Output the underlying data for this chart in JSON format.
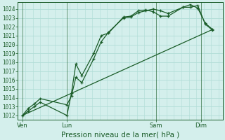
{
  "background_color": "#d4efec",
  "grid_color": "#b0ddd6",
  "line_color": "#1a5c28",
  "ylabel_ticks": [
    1012,
    1013,
    1014,
    1015,
    1016,
    1017,
    1018,
    1019,
    1020,
    1021,
    1022,
    1023,
    1024
  ],
  "ylim": [
    1011.5,
    1024.8
  ],
  "xlabel": "Pression niveau de la mer( hPa )",
  "xtick_labels": [
    "Ven",
    "Lun",
    "Sam",
    "Dim"
  ],
  "xtick_positions": [
    0,
    3,
    9,
    12
  ],
  "xlim": [
    -0.3,
    13.5
  ],
  "series1_x": [
    0.0,
    0.4,
    0.8,
    1.2,
    3.0,
    3.3,
    3.6,
    4.0,
    4.8,
    5.3,
    5.8,
    6.8,
    7.3,
    7.8,
    8.3,
    8.8,
    9.3,
    9.8,
    10.8,
    11.3,
    11.8,
    12.3,
    12.8
  ],
  "series1_y": [
    1012.0,
    1012.5,
    1013.0,
    1013.5,
    1012.0,
    1014.5,
    1017.8,
    1016.5,
    1019.0,
    1021.0,
    1021.3,
    1023.1,
    1023.2,
    1023.8,
    1023.9,
    1023.7,
    1023.2,
    1023.2,
    1024.2,
    1024.5,
    1024.1,
    1022.4,
    1021.7
  ],
  "series2_x": [
    0.0,
    0.4,
    0.8,
    1.2,
    3.0,
    3.3,
    3.6,
    4.0,
    4.8,
    5.3,
    5.8,
    6.8,
    7.3,
    7.8,
    8.3,
    8.8,
    9.3,
    9.8,
    10.8,
    11.3,
    11.8,
    12.3,
    12.8
  ],
  "series2_y": [
    1012.0,
    1012.8,
    1013.3,
    1013.9,
    1013.2,
    1014.2,
    1016.3,
    1015.7,
    1018.4,
    1020.3,
    1021.4,
    1023.0,
    1023.1,
    1023.6,
    1023.8,
    1024.0,
    1023.8,
    1023.5,
    1024.2,
    1024.2,
    1024.4,
    1022.3,
    1021.6
  ],
  "series3_x": [
    0.0,
    12.8
  ],
  "series3_y": [
    1012.0,
    1021.7
  ],
  "vline_positions": [
    0,
    3,
    9,
    12
  ],
  "axis_fontsize": 7.5,
  "tick_fontsize": 5.5
}
